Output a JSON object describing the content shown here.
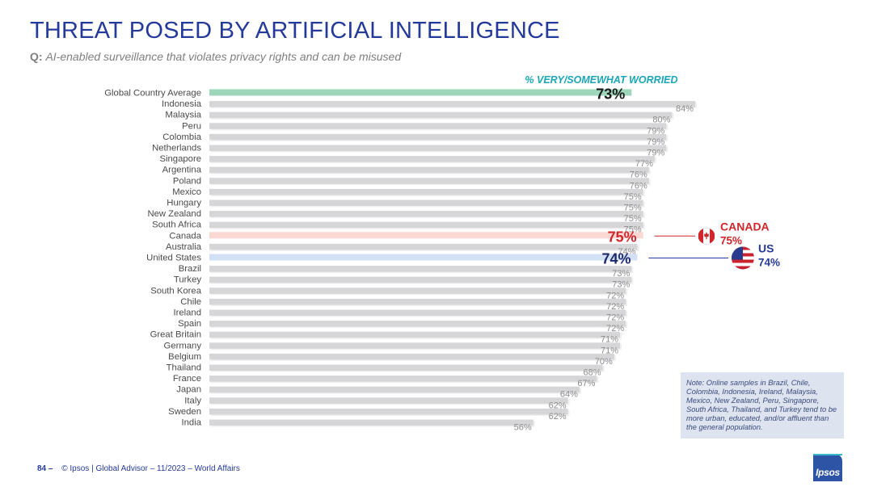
{
  "header": {
    "title": "THREAT POSED BY ARTIFICIAL INTELLIGENCE",
    "question_label": "Q:",
    "question_text": "AI-enabled surveillance that violates privacy rights and can be misused"
  },
  "chart_data": {
    "type": "bar",
    "orientation": "horizontal",
    "title": "THREAT POSED BY ARTIFICIAL INTELLIGENCE",
    "series_name": "% VERY/SOMEWHAT WORRIED",
    "xlim": [
      0,
      100
    ],
    "categories": [
      "Global Country Average",
      "Indonesia",
      "Malaysia",
      "Peru",
      "Colombia",
      "Netherlands",
      "Singapore",
      "Argentina",
      "Poland",
      "Mexico",
      "Hungary",
      "New Zealand",
      "South Africa",
      "Canada",
      "Australia",
      "United States",
      "Brazil",
      "Turkey",
      "South Korea",
      "Chile",
      "Ireland",
      "Spain",
      "Great Britain",
      "Germany",
      "Belgium",
      "Thailand",
      "France",
      "Japan",
      "Italy",
      "Sweden",
      "India"
    ],
    "values": [
      73,
      84,
      80,
      79,
      79,
      79,
      77,
      76,
      76,
      75,
      75,
      75,
      75,
      75,
      74,
      74,
      73,
      73,
      72,
      72,
      72,
      72,
      71,
      71,
      70,
      68,
      67,
      64,
      62,
      62,
      56
    ],
    "value_labels": [
      "73%",
      "84%",
      "80%",
      "79%",
      "79%",
      "79%",
      "77%",
      "76%",
      "76%",
      "75%",
      "75%",
      "75%",
      "75%",
      "75%",
      "74%",
      "74%",
      "73%",
      "73%",
      "72%",
      "72%",
      "72%",
      "72%",
      "71%",
      "71%",
      "70%",
      "68%",
      "67%",
      "64%",
      "62%",
      "62%",
      "56%"
    ],
    "highlights": {
      "Global Country Average": {
        "bar_color": "#9dd6bb",
        "label_color": "#1a1a1a"
      },
      "Canada": {
        "bar_color": "#fbd8d3",
        "label_color": "#d0262b"
      },
      "United States": {
        "bar_color": "#d3e0f5",
        "label_color": "#1f2a6e"
      }
    },
    "default_bar_color": "#d6d6d8",
    "default_label_color": "#8c8c8c"
  },
  "callouts": [
    {
      "country": "Canada",
      "name": "CANADA",
      "value": "75%",
      "color": "#d0262b",
      "flag": "canada-flag-icon"
    },
    {
      "country": "United States",
      "name": "US",
      "value": "74%",
      "color": "#243a9b",
      "flag": "us-flag-icon"
    }
  ],
  "note": "Note: Online samples in Brazil, Chile, Colombia, Indonesia, Ireland, Malaysia, Mexico, New Zealand, Peru, Singapore, South Africa, Thailand, and Turkey tend to be more urban, educated, and/or affluent than the general population.",
  "footer": {
    "page_number": "84 –",
    "source": "© Ipsos | Global Advisor – 11/2023 – World Affairs"
  },
  "logo": "Ipsos"
}
